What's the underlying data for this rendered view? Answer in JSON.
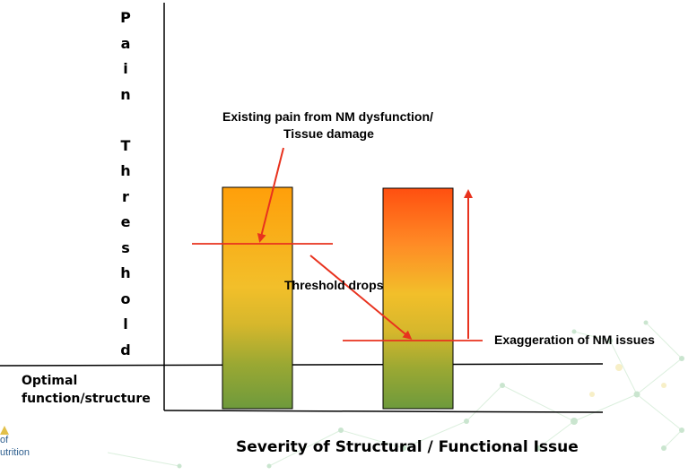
{
  "y_axis": {
    "letters": [
      "P",
      "a",
      "i",
      "n",
      "",
      "T",
      "h",
      "r",
      "e",
      "s",
      "h",
      "o",
      "l",
      "d"
    ]
  },
  "x_axis": {
    "label": "Severity of Structural / Functional Issue"
  },
  "baseline_label": {
    "line1": "Optimal",
    "line2": "function/structure"
  },
  "callouts": {
    "existing_pain_line1": "Existing pain from NM dysfunction/",
    "existing_pain_line2": "Tissue damage",
    "threshold_drops": "Threshold drops",
    "exaggeration": "Exaggeration of NM issues"
  },
  "logo": {
    "line1": "of",
    "line2": "utrition"
  },
  "colors": {
    "axis": "#000000",
    "arrow": "#e8321e",
    "bar_top_left": "#ff9f0a",
    "bar_top_right": "#ff4f10",
    "bar_mid": "#f2bf2a",
    "bar_bottom": "#6e9a3c",
    "network": "#9fd0a8"
  }
}
